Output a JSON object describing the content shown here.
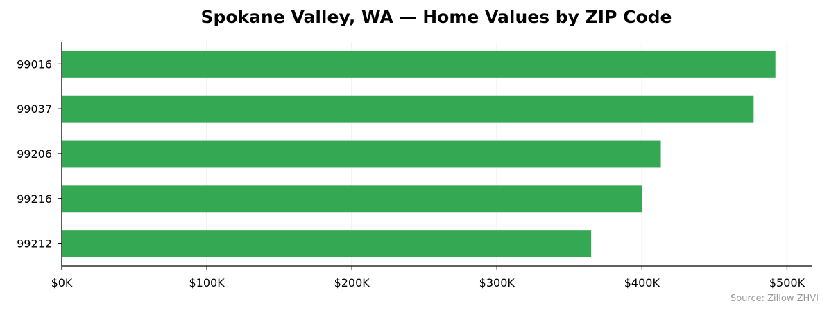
{
  "chart_data": {
    "type": "bar",
    "orientation": "horizontal",
    "title": "Spokane Valley, WA — Home Values by ZIP Code",
    "xlabel": "",
    "ylabel": "",
    "categories": [
      "99016",
      "99037",
      "99206",
      "99216",
      "99212"
    ],
    "values": [
      492000,
      477000,
      413000,
      400000,
      365000
    ],
    "xlim": [
      0,
      517000
    ],
    "x_ticks": [
      0,
      100000,
      200000,
      300000,
      400000,
      500000
    ],
    "x_tick_labels": [
      "$0K",
      "$100K",
      "$200K",
      "$300K",
      "$400K",
      "$500K"
    ],
    "grid": "x-axis vertical lines",
    "legend": "none",
    "bar_color": "#34a853",
    "source": "Source: Zillow ZHVI"
  }
}
